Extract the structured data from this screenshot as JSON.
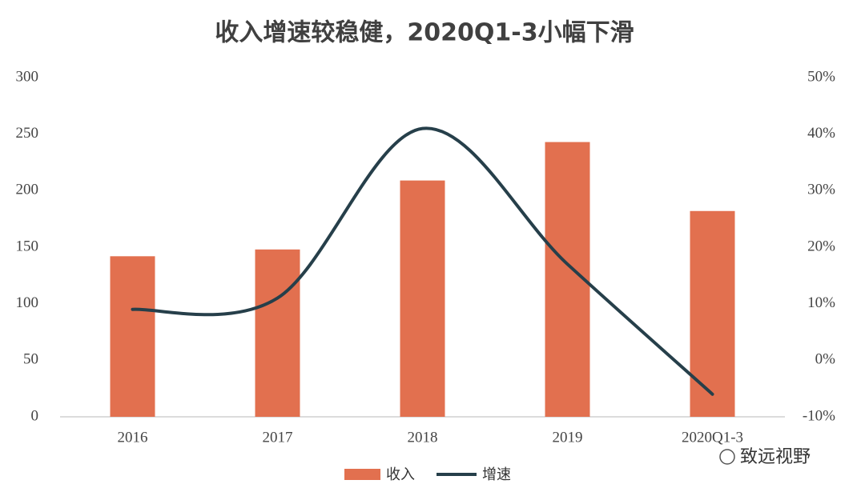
{
  "chart_data": {
    "type": "bar-line",
    "title": "收入增速较稳健，2020Q1-3小幅下滑",
    "categories": [
      "2016",
      "2017",
      "2018",
      "2019",
      "2020Q1-3"
    ],
    "series": [
      {
        "name": "收入",
        "type": "bar",
        "color": "#e2704f",
        "values": [
          142,
          148,
          209,
          243,
          182
        ]
      },
      {
        "name": "增速",
        "type": "line",
        "axis": "y2",
        "color": "#263f4a",
        "smooth": true,
        "values": [
          9,
          11,
          41,
          17,
          -6
        ]
      }
    ],
    "ylim": [
      0,
      300
    ],
    "yticks": [
      0,
      50,
      100,
      150,
      200,
      250,
      300
    ],
    "y2lim": [
      -10,
      50
    ],
    "y2ticks": [
      {
        "value": -10,
        "label": "-10%"
      },
      {
        "value": 0,
        "label": "0%"
      },
      {
        "value": 10,
        "label": "10%"
      },
      {
        "value": 20,
        "label": "20%"
      },
      {
        "value": 30,
        "label": "30%"
      },
      {
        "value": 40,
        "label": "40%"
      },
      {
        "value": 50,
        "label": "50%"
      }
    ],
    "grid": false,
    "legend": "bottom",
    "watermark": "致远视野"
  }
}
